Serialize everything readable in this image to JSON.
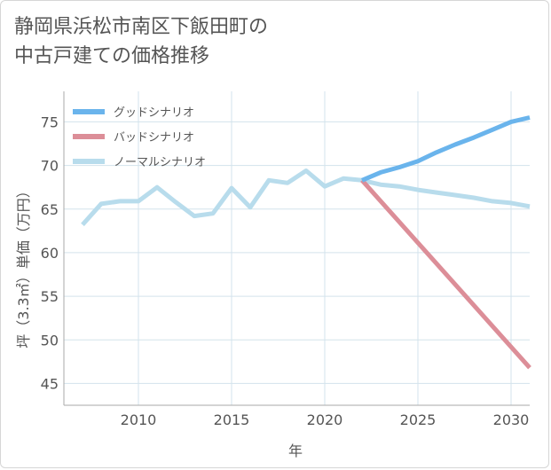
{
  "title_line1": "静岡県浜松市南区下飯田町の",
  "title_line2": "中古戸建ての価格推移",
  "chart_data": {
    "type": "line",
    "xlabel": "年",
    "ylabel": "坪（3.3㎡）単価（万円）",
    "xlim": [
      2006,
      2031
    ],
    "ylim": [
      42.5,
      78.5
    ],
    "x_ticks": [
      2010,
      2015,
      2020,
      2025,
      2030
    ],
    "y_ticks": [
      45,
      50,
      55,
      60,
      65,
      70,
      75
    ],
    "grid": true,
    "legend_position": "top-left",
    "series": [
      {
        "name": "グッドシナリオ",
        "color": "#6ab4ec",
        "x": [
          2022,
          2023,
          2024,
          2025,
          2026,
          2027,
          2028,
          2029,
          2030,
          2031
        ],
        "y": [
          68.3,
          69.2,
          69.8,
          70.5,
          71.5,
          72.4,
          73.2,
          74.1,
          75.0,
          75.5
        ]
      },
      {
        "name": "バッドシナリオ",
        "color": "#dc8e98",
        "x": [
          2022,
          2031
        ],
        "y": [
          68.3,
          46.8
        ]
      },
      {
        "name": "ノーマルシナリオ",
        "color": "#b8dcec",
        "x": [
          2007,
          2008,
          2009,
          2010,
          2011,
          2012,
          2013,
          2014,
          2015,
          2016,
          2017,
          2018,
          2019,
          2020,
          2021,
          2022,
          2023,
          2024,
          2025,
          2026,
          2027,
          2028,
          2029,
          2030,
          2031
        ],
        "y": [
          63.2,
          65.6,
          65.9,
          65.9,
          67.5,
          65.8,
          64.2,
          64.5,
          67.4,
          65.2,
          68.3,
          68.0,
          69.4,
          67.6,
          68.5,
          68.3,
          67.8,
          67.6,
          67.2,
          66.9,
          66.6,
          66.3,
          65.9,
          65.7,
          65.3
        ]
      }
    ]
  }
}
